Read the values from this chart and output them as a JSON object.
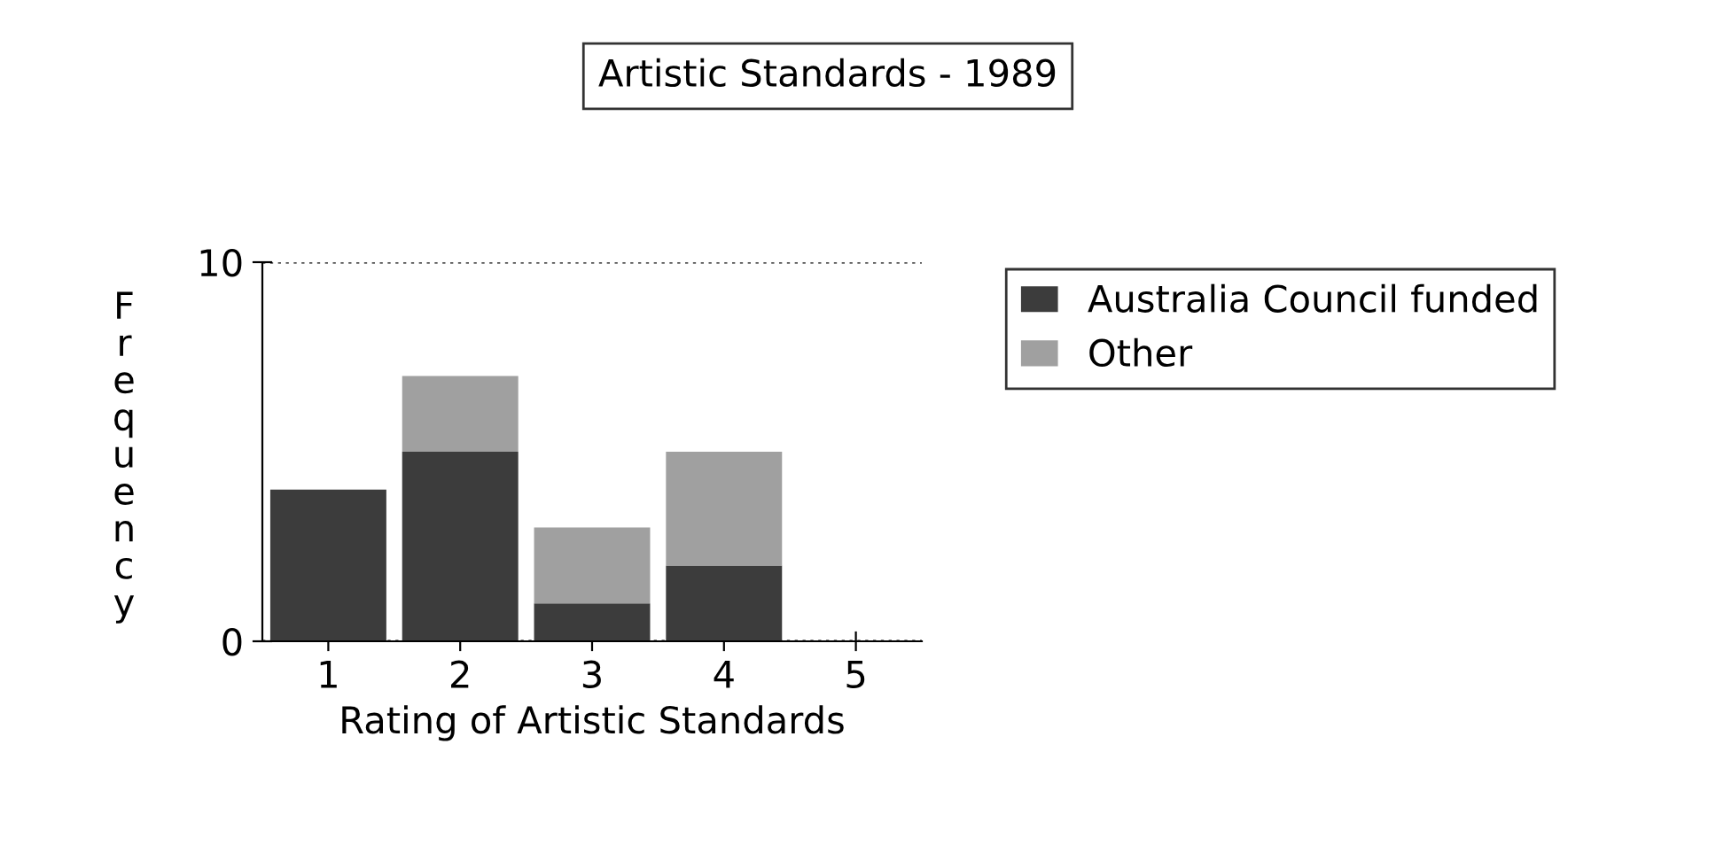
{
  "chart_data": {
    "type": "bar",
    "title": "Artistic Standards - 1989",
    "xlabel": "Rating of Artistic Standards",
    "ylabel": "Frequency",
    "categories": [
      "1",
      "2",
      "3",
      "4",
      "5"
    ],
    "series": [
      {
        "name": "Australia Council funded",
        "color": "#3c3c3c",
        "values": [
          4,
          5,
          1,
          2,
          0
        ]
      },
      {
        "name": "Other",
        "color": "#a0a0a0",
        "values": [
          0,
          2,
          2,
          3,
          0
        ]
      }
    ],
    "stacked": true,
    "ylim": [
      0,
      10
    ],
    "yticks": [
      0,
      10
    ],
    "grid": "y",
    "legend": "right"
  }
}
